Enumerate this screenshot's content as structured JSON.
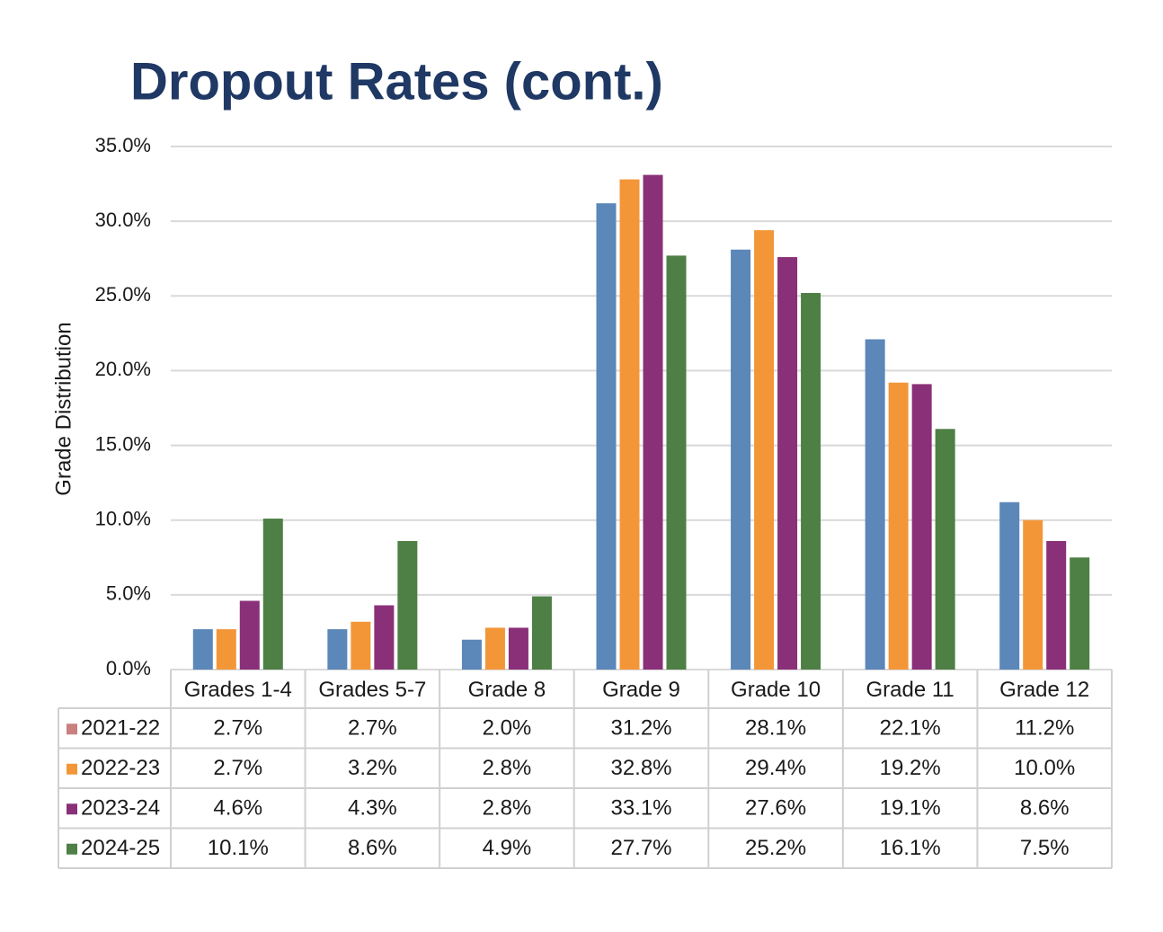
{
  "chart_data": {
    "type": "bar",
    "title": "Dropout Rates (cont.)",
    "y_label": "Grade Distribution",
    "categories": [
      "Grades 1-4",
      "Grades 5-7",
      "Grade 8",
      "Grade 9",
      "Grade 10",
      "Grade 11",
      "Grade 12"
    ],
    "series": [
      {
        "name": "2021-22",
        "color": "#5b87b9",
        "key_color": "#c9807e",
        "values": [
          2.7,
          2.7,
          2.0,
          31.2,
          28.1,
          22.1,
          11.2
        ],
        "value_labels": [
          "2.7%",
          "2.7%",
          "2.0%",
          "31.2%",
          "28.1%",
          "22.1%",
          "11.2%"
        ]
      },
      {
        "name": "2022-23",
        "color": "#f39638",
        "values": [
          2.7,
          3.2,
          2.8,
          32.8,
          29.4,
          19.2,
          10.0
        ],
        "value_labels": [
          "2.7%",
          "3.2%",
          "2.8%",
          "32.8%",
          "29.4%",
          "19.2%",
          "10.0%"
        ]
      },
      {
        "name": "2023-24",
        "color": "#8a3079",
        "values": [
          4.6,
          4.3,
          2.8,
          33.1,
          27.6,
          19.1,
          8.6
        ],
        "value_labels": [
          "4.6%",
          "4.3%",
          "2.8%",
          "33.1%",
          "27.6%",
          "19.1%",
          "8.6%"
        ]
      },
      {
        "name": "2024-25",
        "color": "#4e7f45",
        "values": [
          10.1,
          8.6,
          4.9,
          27.7,
          25.2,
          16.1,
          7.5
        ],
        "value_labels": [
          "10.1%",
          "8.6%",
          "4.9%",
          "27.7%",
          "25.2%",
          "16.1%",
          "7.5%"
        ]
      }
    ],
    "ylim": [
      0,
      35
    ],
    "yticks": [
      {
        "value": 0,
        "label": "0.0%"
      },
      {
        "value": 5,
        "label": "5.0%"
      },
      {
        "value": 10,
        "label": "10.0%"
      },
      {
        "value": 15,
        "label": "15.0%"
      },
      {
        "value": 20,
        "label": "20.0%"
      },
      {
        "value": 25,
        "label": "25.0%"
      },
      {
        "value": 30,
        "label": "30.0%"
      },
      {
        "value": 35,
        "label": "35.0%"
      }
    ],
    "grid": true
  }
}
